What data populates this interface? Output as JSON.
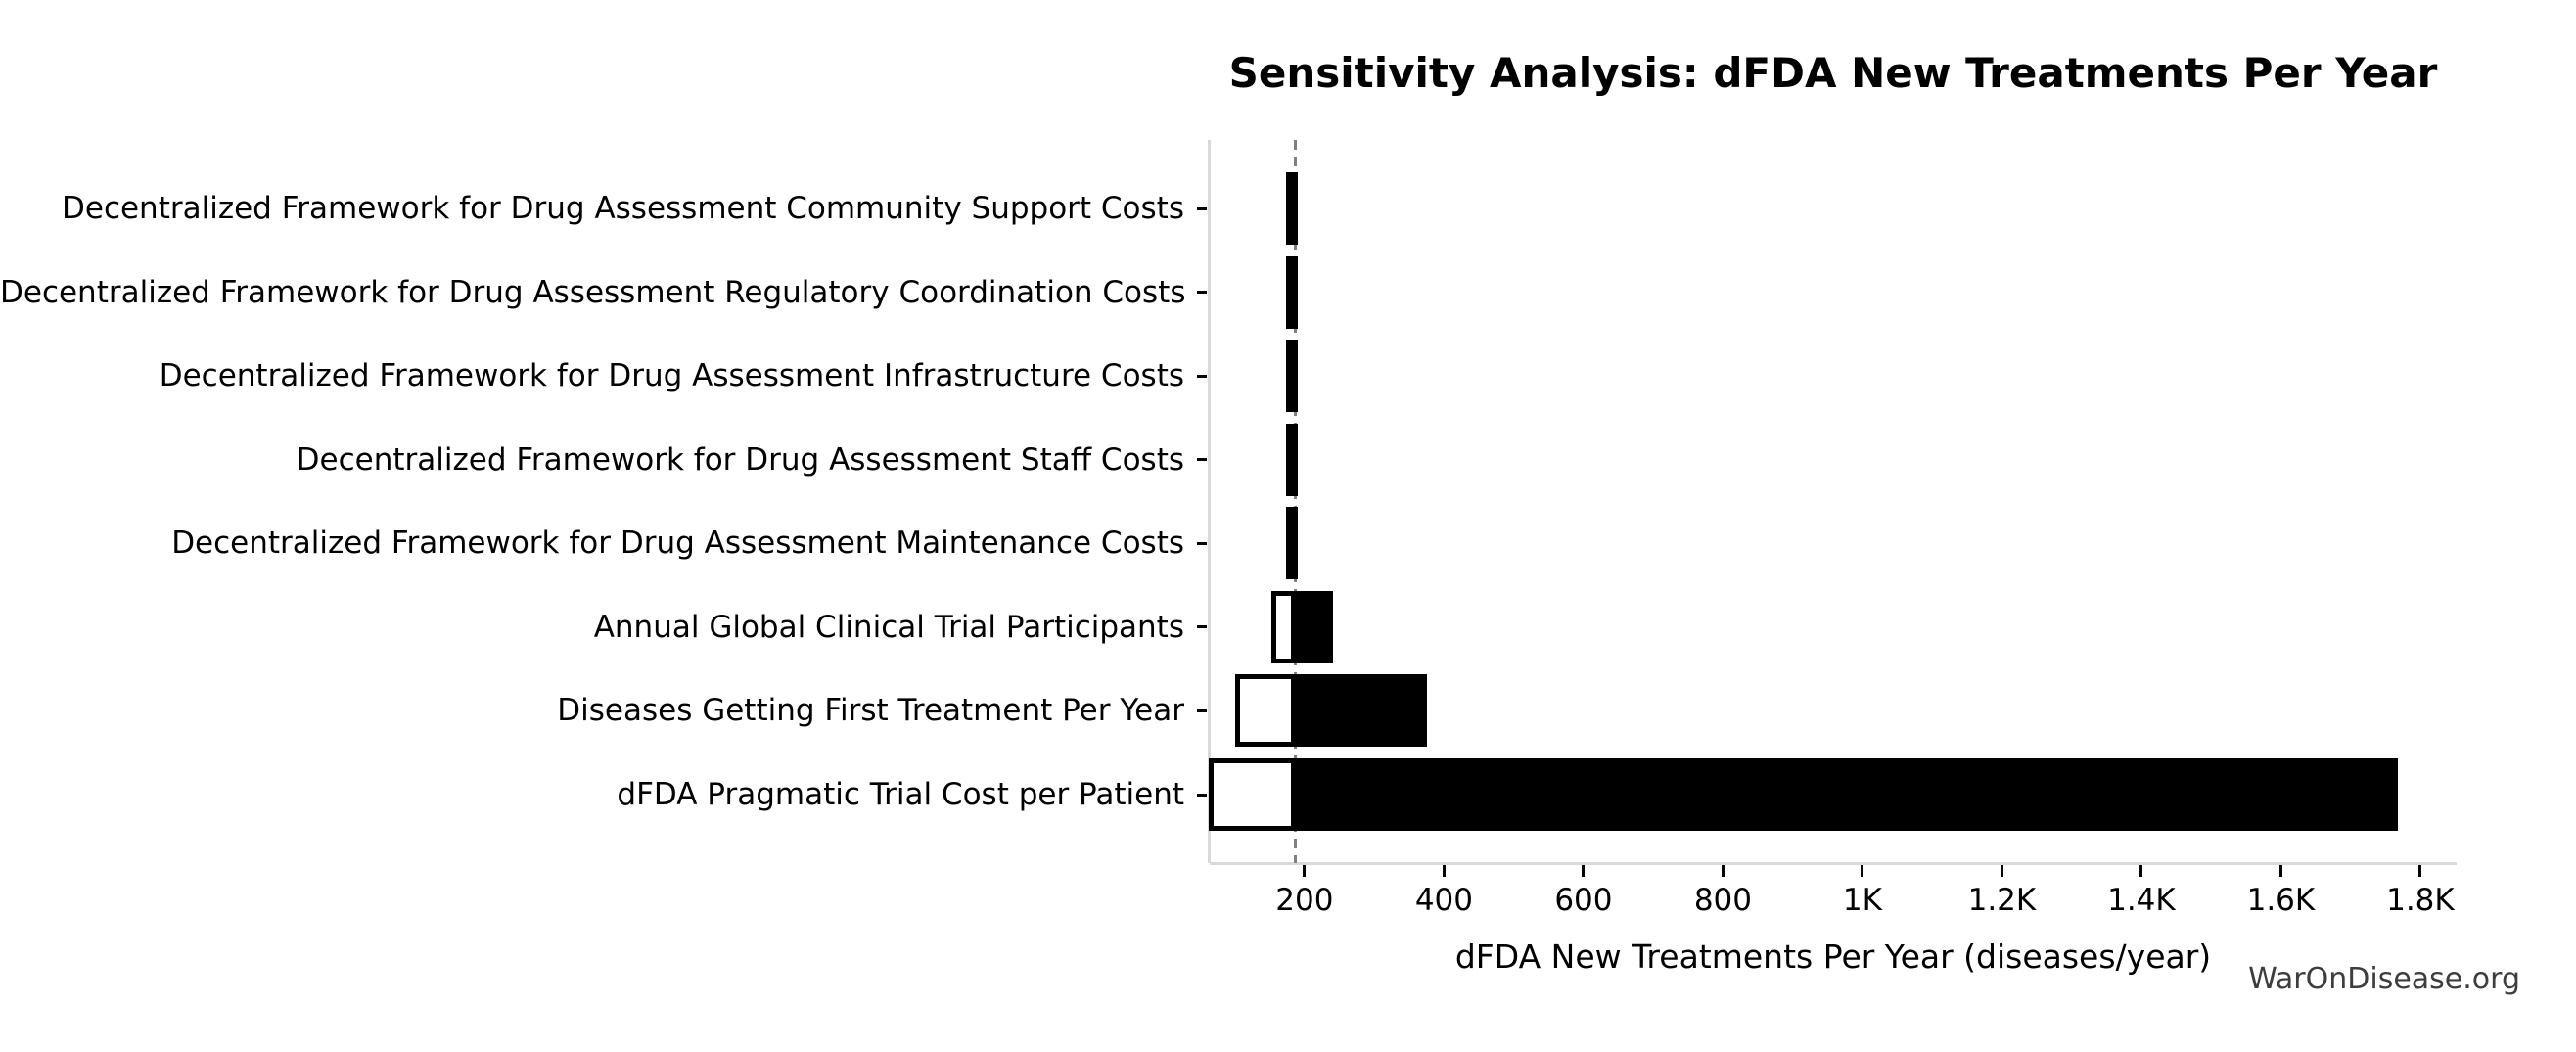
{
  "chart_data": {
    "type": "bar",
    "variant": "tornado-sensitivity",
    "orientation": "horizontal",
    "title": "Sensitivity Analysis: dFDA New Treatments Per Year",
    "xlabel": "dFDA New Treatments Per Year (diseases/year)",
    "ylabel": "",
    "watermark": "WarOnDisease.org",
    "baseline_value": 187,
    "xlim": [
      64,
      1852
    ],
    "grid": "off",
    "legend": "none",
    "x_ticks": [
      {
        "value": 200,
        "label": "200"
      },
      {
        "value": 400,
        "label": "400"
      },
      {
        "value": 600,
        "label": "600"
      },
      {
        "value": 800,
        "label": "800"
      },
      {
        "value": 1000,
        "label": "1K"
      },
      {
        "value": 1200,
        "label": "1.2K"
      },
      {
        "value": 1400,
        "label": "1.4K"
      },
      {
        "value": 1600,
        "label": "1.6K"
      },
      {
        "value": 1800,
        "label": "1.8K"
      }
    ],
    "rows": [
      {
        "label": "Decentralized Framework for Drug Assessment Community Support Costs",
        "low": 185,
        "high": 190
      },
      {
        "label": "Decentralized Framework for Drug Assessment Regulatory Coordination Costs",
        "low": 185,
        "high": 190
      },
      {
        "label": "Decentralized Framework for Drug Assessment Infrastructure Costs",
        "low": 184,
        "high": 190
      },
      {
        "label": "Decentralized Framework for Drug Assessment Staff Costs",
        "low": 184,
        "high": 191
      },
      {
        "label": "Decentralized Framework for Drug Assessment Maintenance Costs",
        "low": 183,
        "high": 191
      },
      {
        "label": "Annual Global Clinical Trial Participants",
        "low": 153,
        "high": 241
      },
      {
        "label": "Diseases Getting First Treatment Per Year",
        "low": 100,
        "high": 376
      },
      {
        "label": "dFDA Pragmatic Trial Cost per Patient",
        "low": 62,
        "high": 1768
      }
    ],
    "colors": {
      "bar_high_fill": "#000000",
      "bar_low_fill": "#ffffff",
      "bar_edge": "#000000",
      "baseline_line": "#808080",
      "spine": "#d9d9d9",
      "tick": "#000000",
      "text": "#000000",
      "watermark_text": "#3d3d3d",
      "background": "#ffffff"
    }
  }
}
